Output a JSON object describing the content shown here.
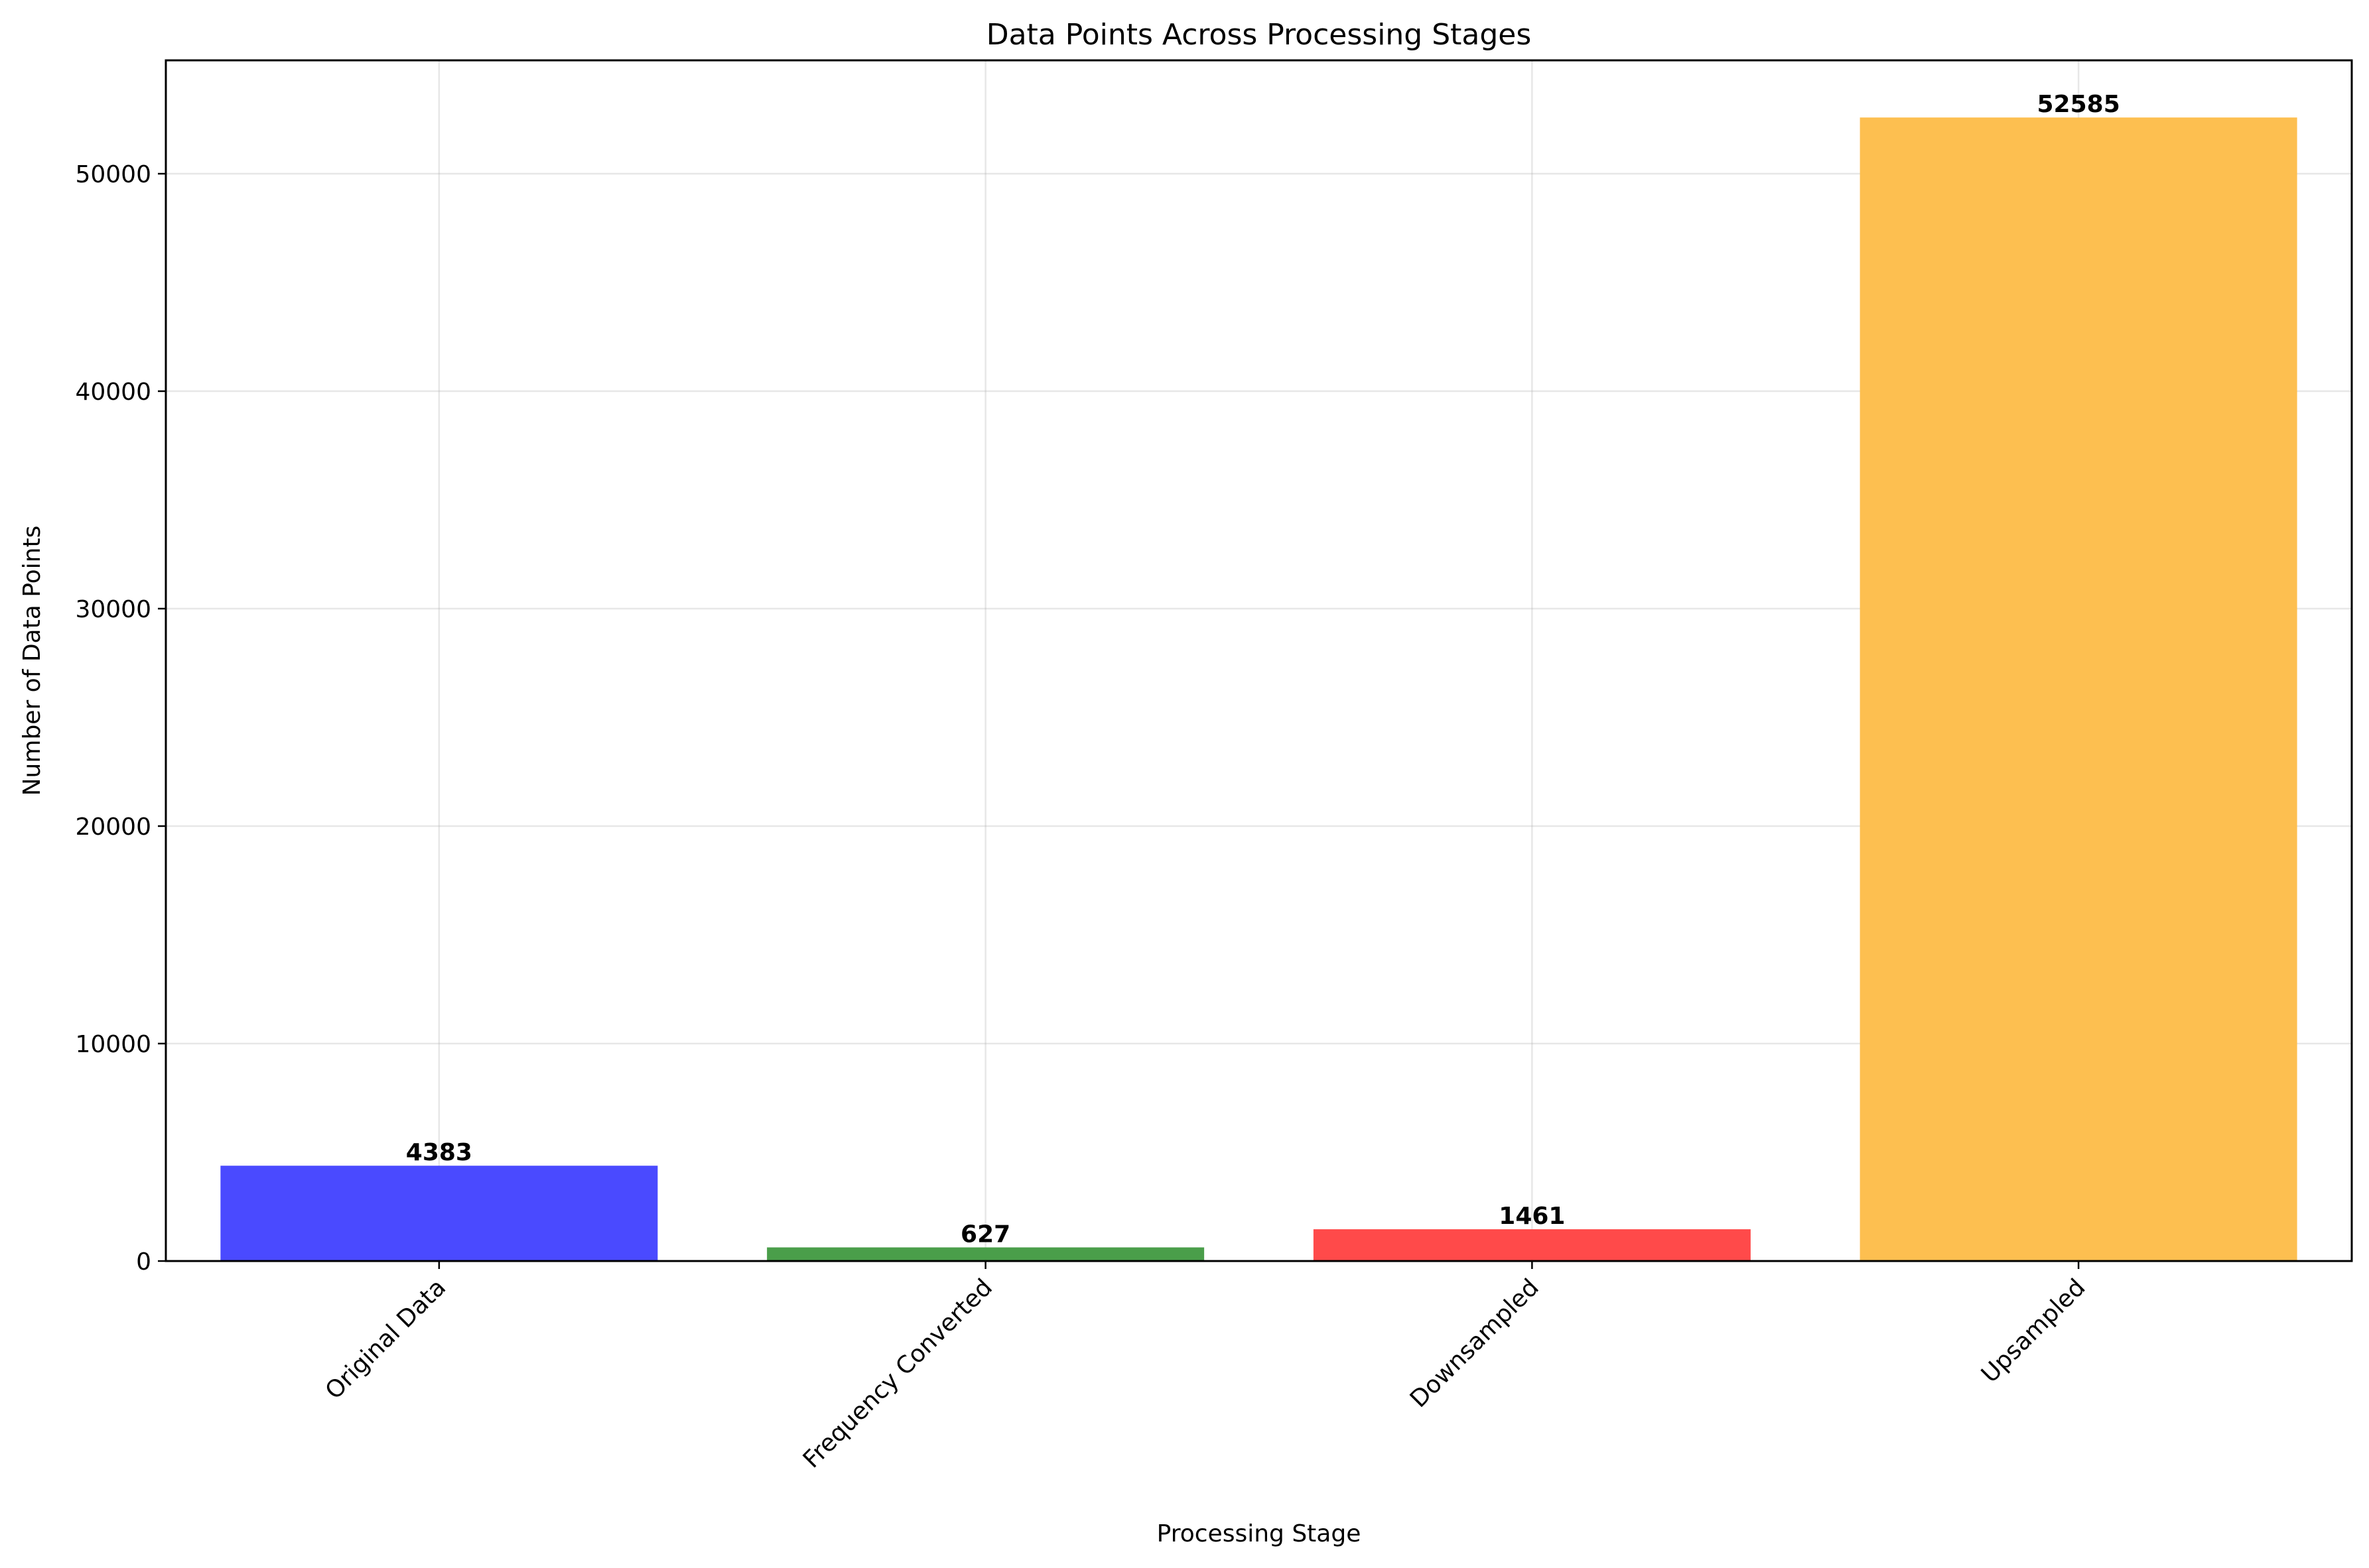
{
  "chart_data": {
    "type": "bar",
    "title": "Data Points Across Processing Stages",
    "xlabel": "Processing Stage",
    "ylabel": "Number of Data Points",
    "categories": [
      "Original Data",
      "Frequency Converted",
      "Downsampled",
      "Upsampled"
    ],
    "values": [
      4383,
      627,
      1461,
      52585
    ],
    "data_labels": [
      "4383",
      "627",
      "1461",
      "52585"
    ],
    "colors": [
      "#4a4aff",
      "#4a9e4a",
      "#ff4a4a",
      "#fdbf50"
    ],
    "ylim": [
      0,
      55214
    ],
    "yticks": [
      0,
      10000,
      20000,
      30000,
      40000,
      50000
    ],
    "ytick_labels": [
      "0",
      "10000",
      "20000",
      "30000",
      "40000",
      "50000"
    ],
    "grid": true,
    "x_tick_rotation_deg": 45
  }
}
